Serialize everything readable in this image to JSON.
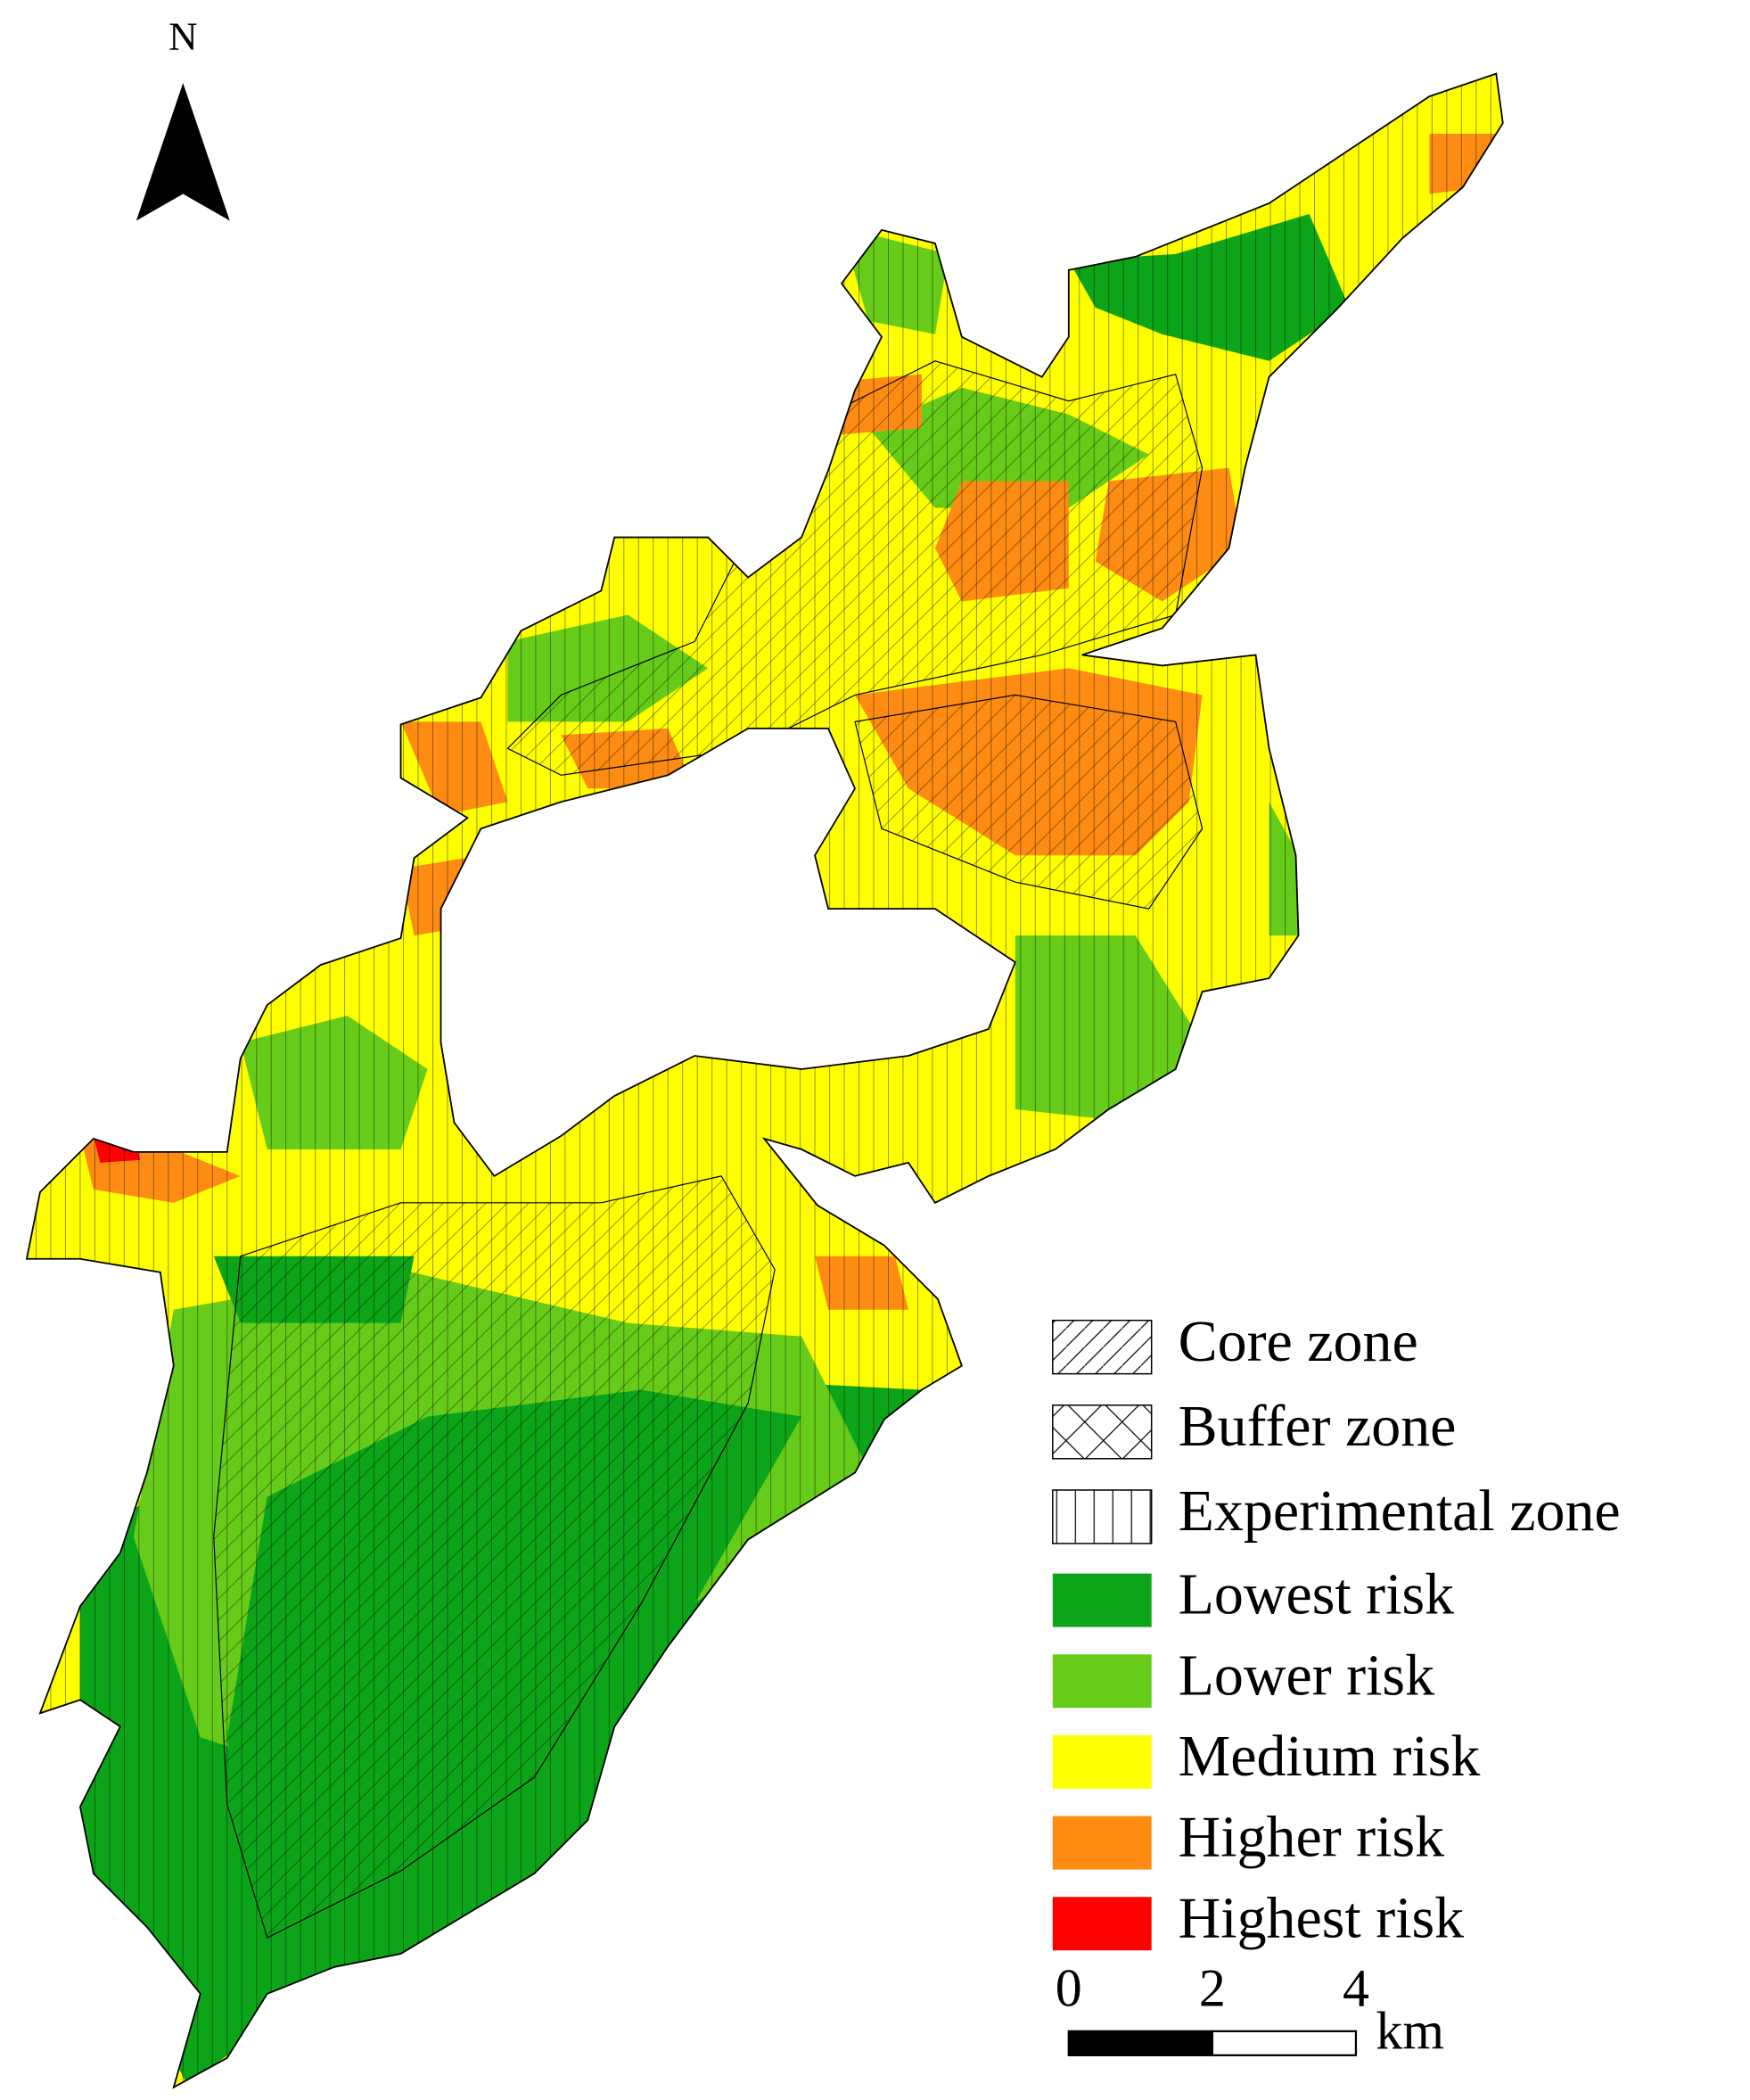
{
  "north_arrow": {
    "label": "N"
  },
  "legend": {
    "zones": [
      {
        "label": "Core zone"
      },
      {
        "label": "Buffer zone"
      },
      {
        "label": "Experimental zone"
      }
    ],
    "risk_levels": [
      {
        "label": "Lowest risk",
        "color": "#0ca51a"
      },
      {
        "label": "Lower risk",
        "color": "#66cc19"
      },
      {
        "label": "Medium risk",
        "color": "#ffff00"
      },
      {
        "label": "Higher risk",
        "color": "#ff8c12"
      },
      {
        "label": "Highest risk",
        "color": "#ff0000"
      }
    ]
  },
  "scale_bar": {
    "ticks": [
      0,
      2,
      4
    ],
    "unit": "km"
  }
}
